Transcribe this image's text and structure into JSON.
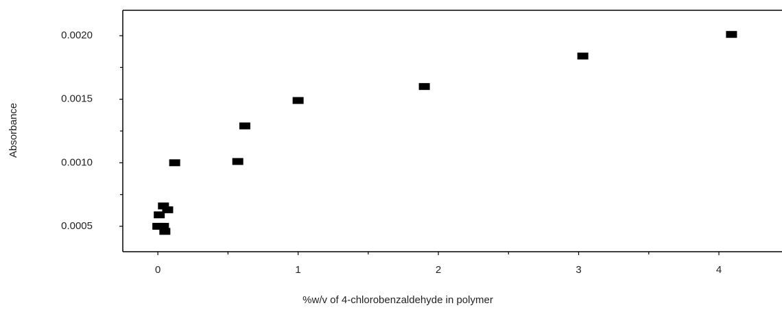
{
  "chart_data": {
    "type": "scatter",
    "xlabel": "%w/v of 4-chlorobenzaldehyde in polymer",
    "ylabel": "Absorbance",
    "x": [
      0,
      0.04,
      0.05,
      0.01,
      0.04,
      0.07,
      0.12,
      0.57,
      0.62,
      1.0,
      1.9,
      3.03,
      4.09
    ],
    "series": [
      {
        "color": "#000000",
        "values": [
          0.0005,
          0.0005,
          0.00046,
          0.00059,
          0.00066,
          0.00063,
          0.001,
          0.00101,
          0.00129,
          0.00149,
          0.0016,
          0.00184,
          0.00201
        ]
      }
    ],
    "xlim": [
      -0.25,
      4.45
    ],
    "ylim": [
      0.0003,
      0.0022
    ],
    "xticks": [
      0,
      1,
      2,
      3,
      4
    ],
    "xminorticks": [
      0.5,
      1.5,
      2.5,
      3.5
    ],
    "yticks": [
      {
        "value": 0.0005,
        "label": "0.0005"
      },
      {
        "value": 0.001,
        "label": "0.0010"
      },
      {
        "value": 0.0015,
        "label": "0.0015"
      },
      {
        "value": 0.002,
        "label": "0.0020"
      }
    ],
    "yminorticks": [
      0.00075,
      0.00125,
      0.00175
    ]
  }
}
